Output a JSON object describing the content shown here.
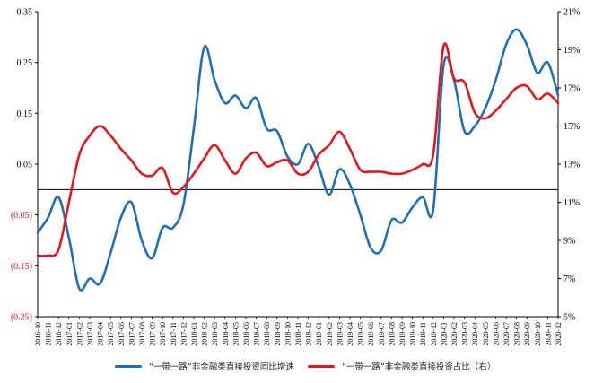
{
  "chart_data": {
    "type": "line",
    "categories": [
      "2016-10",
      "2016-11",
      "2016-12",
      "2017-01",
      "2017-02",
      "2017-03",
      "2017-04",
      "2017-05",
      "2017-06",
      "2017-07",
      "2017-08",
      "2017-09",
      "2017-10",
      "2017-11",
      "2017-12",
      "2018-01",
      "2018-02",
      "2018-03",
      "2018-04",
      "2018-05",
      "2018-06",
      "2018-07",
      "2018-08",
      "2018-09",
      "2018-10",
      "2018-11",
      "2018-12",
      "2019-01",
      "2019-02",
      "2019-03",
      "2019-04",
      "2019-05",
      "2019-06",
      "2019-07",
      "2019-08",
      "2019-09",
      "2019-10",
      "2019-11",
      "2019-12",
      "2020-01",
      "2020-02",
      "2020-03",
      "2020-04",
      "2020-05",
      "2020-06",
      "2020-07",
      "2020-08",
      "2020-09",
      "2020-10",
      "2020-11",
      "2020-12"
    ],
    "series": [
      {
        "name": "“一带一路”非金融类直接投资同比增速",
        "axis": "left",
        "color": "#1f6fb2",
        "values": [
          -0.085,
          -0.055,
          -0.015,
          -0.095,
          -0.195,
          -0.175,
          -0.185,
          -0.125,
          -0.055,
          -0.025,
          -0.1,
          -0.135,
          -0.075,
          -0.075,
          -0.03,
          0.12,
          0.28,
          0.215,
          0.17,
          0.185,
          0.16,
          0.18,
          0.12,
          0.115,
          0.065,
          0.05,
          0.09,
          0.045,
          -0.01,
          0.04,
          0.01,
          -0.05,
          -0.115,
          -0.12,
          -0.06,
          -0.065,
          -0.035,
          -0.015,
          -0.04,
          0.245,
          0.215,
          0.115,
          0.125,
          0.16,
          0.215,
          0.285,
          0.315,
          0.285,
          0.23,
          0.25,
          0.185
        ]
      },
      {
        "name": "“一带一路”非金融类直接投资占比（右）",
        "axis": "right",
        "color": "#e8141c",
        "values": [
          8.2,
          8.2,
          8.5,
          11.0,
          13.5,
          14.5,
          15.0,
          14.5,
          13.8,
          13.2,
          12.5,
          12.4,
          12.8,
          11.5,
          11.8,
          12.5,
          13.3,
          14.0,
          13.2,
          12.5,
          13.3,
          13.6,
          12.9,
          13.1,
          13.2,
          12.5,
          12.6,
          13.5,
          14.0,
          14.7,
          13.8,
          12.7,
          12.6,
          12.6,
          12.5,
          12.5,
          12.7,
          13.0,
          13.5,
          19.2,
          17.5,
          17.3,
          15.7,
          15.4,
          15.8,
          16.4,
          17.0,
          17.1,
          16.4,
          16.7,
          16.2
        ]
      }
    ],
    "left_axis": {
      "min": -0.25,
      "max": 0.35,
      "ticks": [
        0.35,
        0.25,
        0.15,
        0.05,
        -0.05,
        -0.15,
        -0.25
      ],
      "labels": [
        "0.35",
        "0.25",
        "0.15",
        "0.05",
        "(0.05)",
        "(0.15)",
        "(0.25)"
      ]
    },
    "right_axis": {
      "min": 5,
      "max": 21,
      "ticks": [
        21,
        19,
        17,
        15,
        13,
        11,
        9,
        7,
        5
      ],
      "labels": [
        "21%",
        "19%",
        "17%",
        "15%",
        "13%",
        "11%",
        "9%",
        "7%",
        "5%"
      ]
    },
    "zero_line": true,
    "grid": false,
    "legend_position": "bottom",
    "title": "",
    "xlabel": "",
    "ylabel": ""
  },
  "colors": {
    "axis": "#000000",
    "negative_label": "#e8141c",
    "positive_label": "#000000"
  }
}
